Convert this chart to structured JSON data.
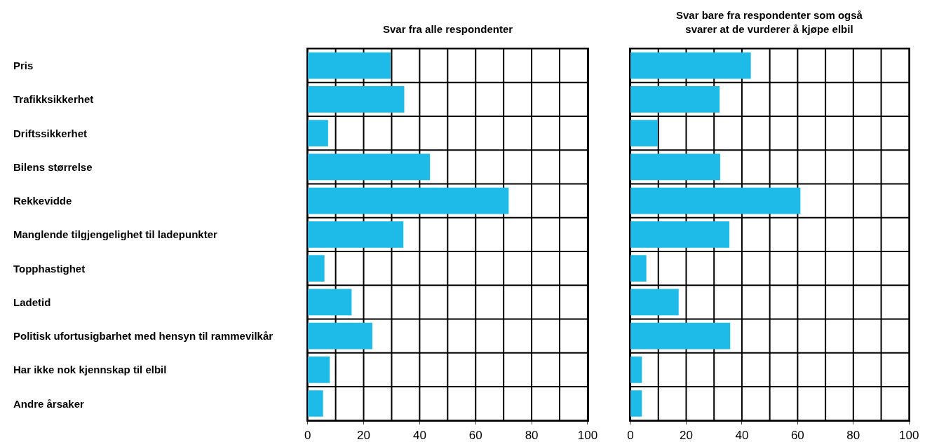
{
  "chart_data": [
    {
      "type": "bar",
      "orientation": "horizontal",
      "title": "Svar fra alle respondenter",
      "categories": [
        "Pris",
        "Trafikksikkerhet",
        "Driftssikkerhet",
        "Bilens størrelse",
        "Rekkevidde",
        "Manglende tilgjengelighet til ladepunkter",
        "Topphastighet",
        "Ladetid",
        "Politisk ufortusigbarhet med hensyn til rammevilkår",
        "Har ikke nok kjennskap til elbil",
        "Andre årsaker"
      ],
      "values": [
        29.6,
        34.5,
        7.3,
        43.7,
        71.8,
        34.2,
        6,
        15.7,
        23.1,
        7.9,
        5.5
      ],
      "color": "#1ebbe8",
      "xlim": [
        0,
        100
      ],
      "xticks": [
        0,
        20,
        40,
        60,
        80,
        100
      ],
      "grid": true
    },
    {
      "type": "bar",
      "orientation": "horizontal",
      "title": "Svar bare fra respondenter som også\nsvarer at de vurderer å kjøpe elbil",
      "categories": [
        null,
        null,
        null,
        null,
        null,
        null,
        null,
        null,
        null,
        null,
        null
      ],
      "values": [
        43.2,
        32,
        9.8,
        32.2,
        61,
        35.5,
        5.7,
        17.3,
        35.8,
        4.1,
        4.1
      ],
      "color": "#1ebbe8",
      "xlim": [
        0,
        100
      ],
      "xticks": [
        0,
        20,
        40,
        60,
        80,
        100
      ],
      "grid": true,
      "tick_labels": "x"
    }
  ]
}
